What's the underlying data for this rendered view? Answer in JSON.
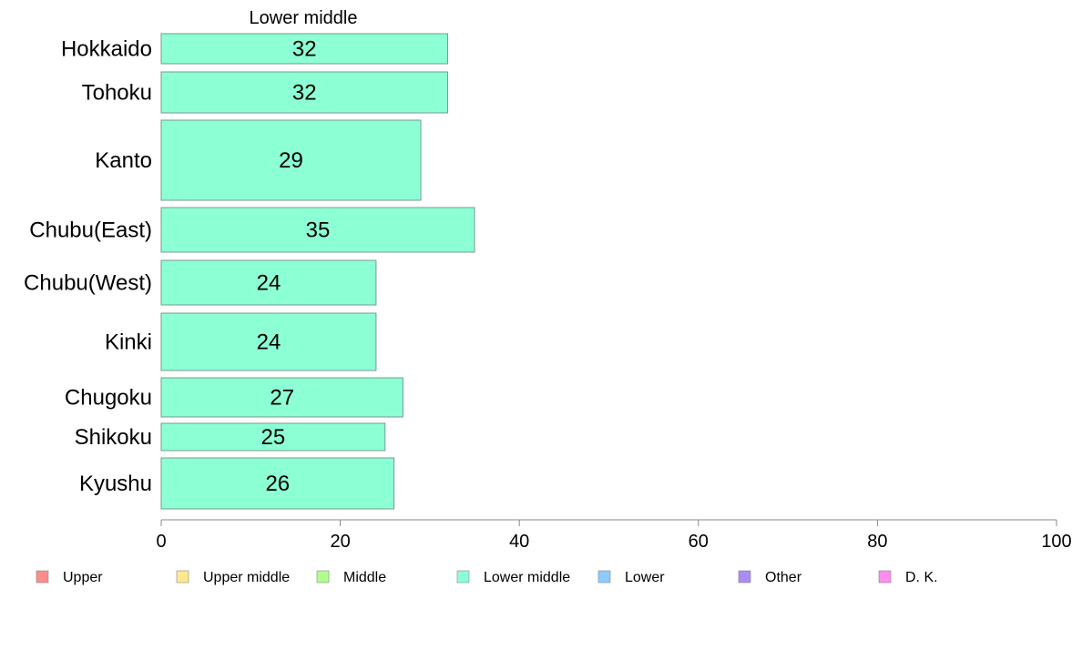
{
  "chart_data": {
    "type": "bar",
    "orientation": "horizontal",
    "title": "Lower middle",
    "categories": [
      "Hokkaido",
      "Tohoku",
      "Kanto",
      "Chubu(East)",
      "Chubu(West)",
      "Kinki",
      "Chugoku",
      "Shikoku",
      "Kyushu"
    ],
    "series": [
      {
        "name": "Lower middle",
        "values": [
          32,
          32,
          29,
          35,
          24,
          24,
          27,
          25,
          26
        ]
      }
    ],
    "xlim": [
      0,
      100
    ],
    "xticks": [
      0,
      20,
      40,
      60,
      80,
      100
    ],
    "bar_color": "#8CFFD5",
    "bar_edge_color": "#7a9a8f",
    "grid": false,
    "legend_position": "bottom",
    "legend": [
      {
        "label": "Upper",
        "color": "#FF8C8C"
      },
      {
        "label": "Upper middle",
        "color": "#FFE98C"
      },
      {
        "label": "Middle",
        "color": "#B0FF8C"
      },
      {
        "label": "Lower middle",
        "color": "#8CFFD5"
      },
      {
        "label": "Lower",
        "color": "#8CCBFF"
      },
      {
        "label": "Other",
        "color": "#A98CF5"
      },
      {
        "label": "D. K.",
        "color": "#FF8CF0"
      }
    ]
  }
}
